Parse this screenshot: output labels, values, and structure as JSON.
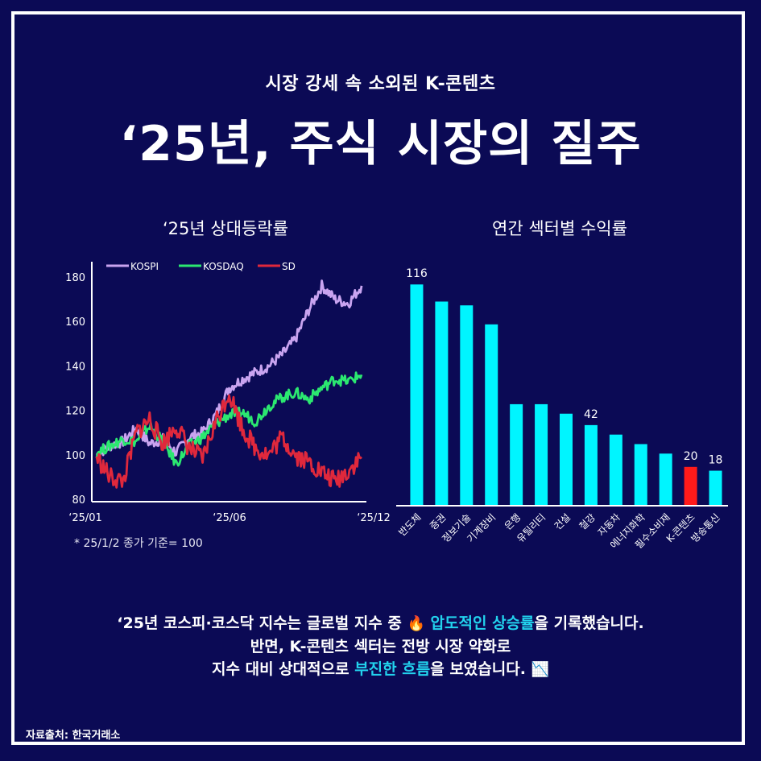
{
  "header": {
    "subtitle": "시장 강세 속 소외된 K-콘텐츠",
    "title": "‘25년, 주식 시장의 질주"
  },
  "colors": {
    "background": "#0b0a55",
    "kospi": "#c9a4f0",
    "kosdaq": "#2be870",
    "sd": "#e0283c",
    "bar": "#00f5ff",
    "bar_highlight": "#ff1a1a",
    "accent_text": "#22d3ee"
  },
  "chart_data": [
    {
      "type": "line",
      "title": "‘25년 상대등락률",
      "legend_position": "top-left",
      "ylim": [
        80,
        185
      ],
      "yticks": [
        80,
        100,
        120,
        140,
        160,
        180
      ],
      "xticks": [
        "‘25/01",
        "‘25/06",
        "‘25/12"
      ],
      "note": "* 25/1/2 종가 기준= 100",
      "x": [
        0,
        0.05,
        0.1,
        0.15,
        0.2,
        0.25,
        0.3,
        0.35,
        0.4,
        0.45,
        0.5,
        0.55,
        0.6,
        0.65,
        0.7,
        0.75,
        0.8,
        0.85,
        0.9,
        0.95,
        1.0
      ],
      "series": [
        {
          "name": "KOSPI",
          "values": [
            100,
            104,
            106,
            112,
            105,
            107,
            101,
            108,
            110,
            118,
            130,
            134,
            137,
            140,
            145,
            152,
            165,
            176,
            170,
            168,
            176
          ]
        },
        {
          "name": "KOSDAQ",
          "values": [
            101,
            104,
            107,
            106,
            113,
            106,
            96,
            104,
            108,
            114,
            118,
            119,
            115,
            122,
            126,
            128,
            125,
            130,
            134,
            133,
            136
          ]
        },
        {
          "name": "SD",
          "values": [
            99,
            90,
            88,
            110,
            116,
            105,
            113,
            103,
            98,
            115,
            128,
            112,
            103,
            100,
            108,
            100,
            97,
            92,
            88,
            93,
            99
          ]
        }
      ]
    },
    {
      "type": "bar",
      "title": "연간 섹터별 수익률",
      "categories": [
        "반도체",
        "증권",
        "정보기술",
        "기계장비",
        "은행",
        "유틸리티",
        "건설",
        "철강",
        "자동차",
        "에너지화학",
        "필수소비재",
        "K-콘텐츠",
        "방송통신"
      ],
      "values": [
        116,
        107,
        105,
        95,
        53,
        53,
        48,
        42,
        37,
        32,
        27,
        20,
        18
      ],
      "labels": [
        "116",
        "",
        "",
        "",
        "",
        "",
        "",
        "42",
        "",
        "",
        "",
        "20",
        "18"
      ],
      "highlight": "K-콘텐츠",
      "ylim": [
        0,
        125
      ]
    }
  ],
  "summary": {
    "line1_pre": "‘25년 코스피·코스닥 지수는 글로벌 지수 중 ",
    "line1_emoji": "🔥",
    "line1_hl": "압도적인 상승률",
    "line1_post": "을 기록했습니다.",
    "line2": "반면, K-콘텐츠 섹터는 전방 시장 약화로",
    "line3_pre": "지수 대비 상대적으로 ",
    "line3_hl": "부진한 흐름",
    "line3_post": "을 보였습니다. ",
    "line3_emoji": "📉"
  },
  "source": "자료출처: 한국거래소"
}
